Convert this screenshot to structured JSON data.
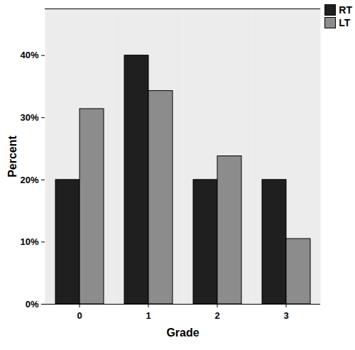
{
  "chart_data": {
    "type": "bar",
    "x_label": "Grade",
    "y_label": "Percent",
    "categories": [
      "0",
      "1",
      "2",
      "3"
    ],
    "series": [
      {
        "name": "RT",
        "color": "#1f1f1f",
        "values": [
          20,
          40,
          20,
          20
        ]
      },
      {
        "name": "LT",
        "color": "#8c8c8c",
        "values": [
          31.4,
          34.3,
          23.8,
          10.5
        ]
      }
    ],
    "ylim": [
      0,
      47.5
    ],
    "yticks": [
      {
        "value": 0,
        "label": "0%"
      },
      {
        "value": 10,
        "label": "10%"
      },
      {
        "value": 20,
        "label": "20%"
      },
      {
        "value": 30,
        "label": "30%"
      },
      {
        "value": 40,
        "label": "40%"
      }
    ],
    "grid": false,
    "legend": "top-right"
  }
}
